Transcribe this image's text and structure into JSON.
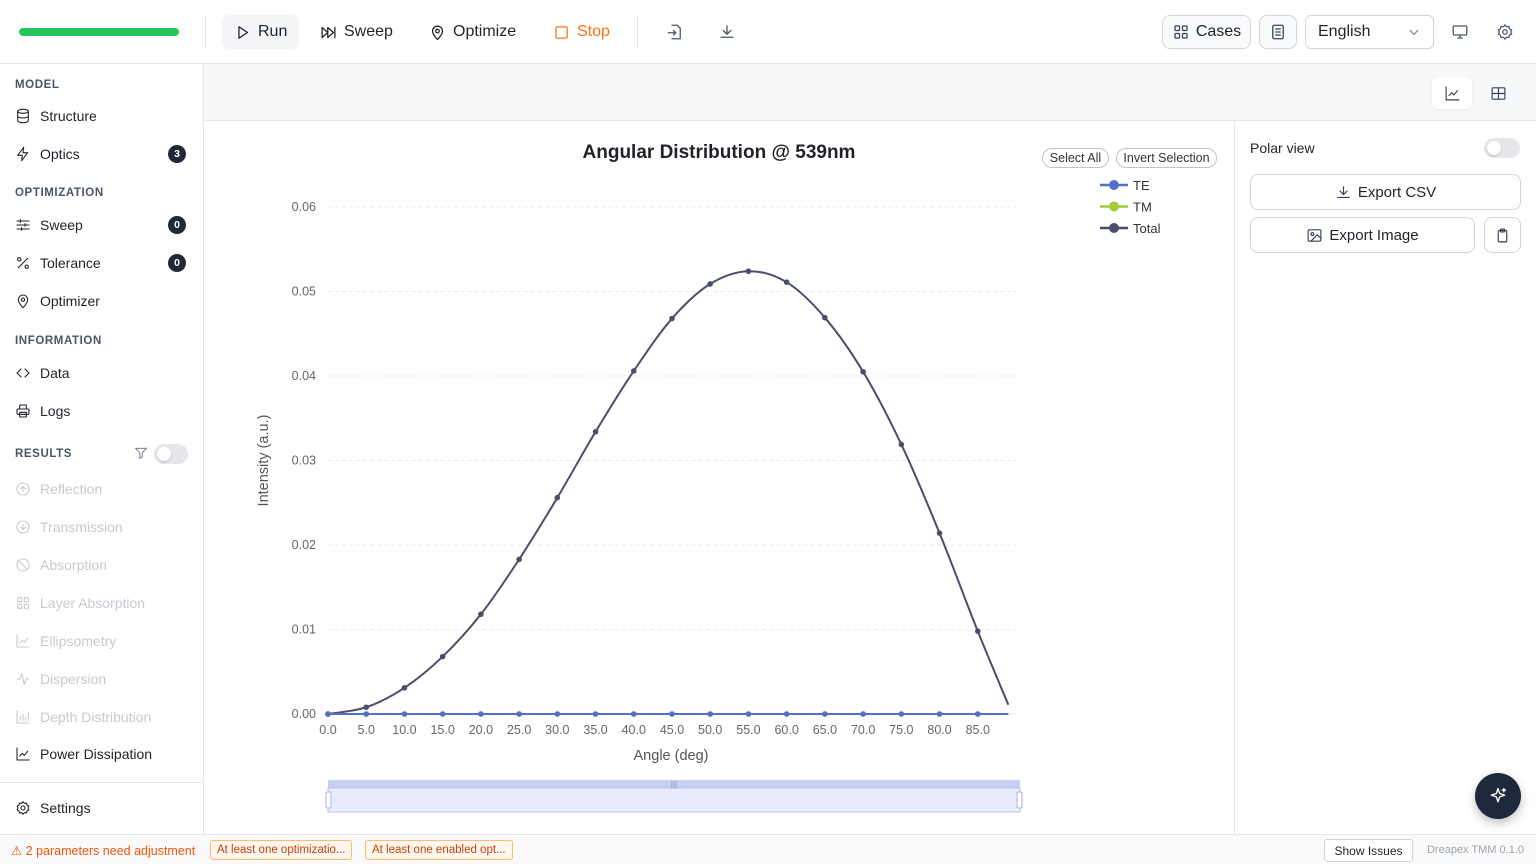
{
  "toolbar": {
    "progress_percent": 100,
    "run": "Run",
    "sweep": "Sweep",
    "optimize": "Optimize",
    "stop": "Stop",
    "cases": "Cases",
    "language": "English"
  },
  "sidebar": {
    "model_title": "MODEL",
    "structure": "Structure",
    "optics": "Optics",
    "optics_badge": "3",
    "optimization_title": "OPTIMIZATION",
    "sweep": "Sweep",
    "sweep_badge": "0",
    "tolerance": "Tolerance",
    "tolerance_badge": "0",
    "optimizer": "Optimizer",
    "information_title": "INFORMATION",
    "data": "Data",
    "logs": "Logs",
    "results_title": "RESULTS",
    "results": [
      "Reflection",
      "Transmission",
      "Absorption",
      "Layer Absorption",
      "Ellipsometry",
      "Dispersion",
      "Depth Distribution"
    ],
    "power_dissipation": "Power Dissipation",
    "settings": "Settings"
  },
  "chart_controls": {
    "select_all": "Select All",
    "invert_selection": "Invert Selection"
  },
  "right_panel": {
    "polar_view": "Polar view",
    "export_csv": "Export CSV",
    "export_image": "Export Image"
  },
  "status": {
    "warning": "⚠ 2 parameters need adjustment",
    "chip1": "At least one optimizatio...",
    "chip2": "At least one enabled opt...",
    "show_issues": "Show Issues",
    "version": "Dreapex TMM 0.1.0"
  },
  "colors": {
    "te": "#5470c6",
    "tm": "#a0cc3c",
    "total": "#4a4e69",
    "progress": "#22c55e",
    "stop": "#f97316"
  },
  "chart_data": {
    "type": "line",
    "title": "Angular Distribution @ 539nm",
    "xlabel": "Angle (deg)",
    "ylabel": "Intensity (a.u.)",
    "x": [
      0,
      5,
      10,
      15,
      20,
      25,
      30,
      35,
      40,
      45,
      50,
      55,
      60,
      65,
      70,
      75,
      80,
      85,
      89
    ],
    "xticks": [
      "0.0",
      "5.0",
      "10.0",
      "15.0",
      "20.0",
      "25.0",
      "30.0",
      "35.0",
      "40.0",
      "45.0",
      "50.0",
      "55.0",
      "60.0",
      "65.0",
      "70.0",
      "75.0",
      "80.0",
      "85.0"
    ],
    "ylim": [
      0,
      0.06
    ],
    "yticks": [
      "0.00",
      "0.01",
      "0.02",
      "0.03",
      "0.04",
      "0.05",
      "0.06"
    ],
    "grid": true,
    "legend_position": "top-right",
    "series": [
      {
        "name": "TE",
        "values": [
          0,
          0,
          0,
          0,
          0,
          0,
          0,
          0,
          0,
          0,
          0,
          0,
          0,
          0,
          0,
          0,
          0,
          0,
          0
        ]
      },
      {
        "name": "TM",
        "values": [
          0,
          0,
          0,
          0,
          0,
          0,
          0,
          0,
          0,
          0,
          0,
          0,
          0,
          0,
          0,
          0,
          0,
          0,
          0
        ]
      },
      {
        "name": "Total",
        "values": [
          0,
          0.0008,
          0.0031,
          0.0068,
          0.0118,
          0.0183,
          0.0256,
          0.0334,
          0.0406,
          0.0468,
          0.0509,
          0.0524,
          0.0511,
          0.0469,
          0.0405,
          0.0319,
          0.0214,
          0.0098,
          0.0011
        ]
      }
    ]
  }
}
